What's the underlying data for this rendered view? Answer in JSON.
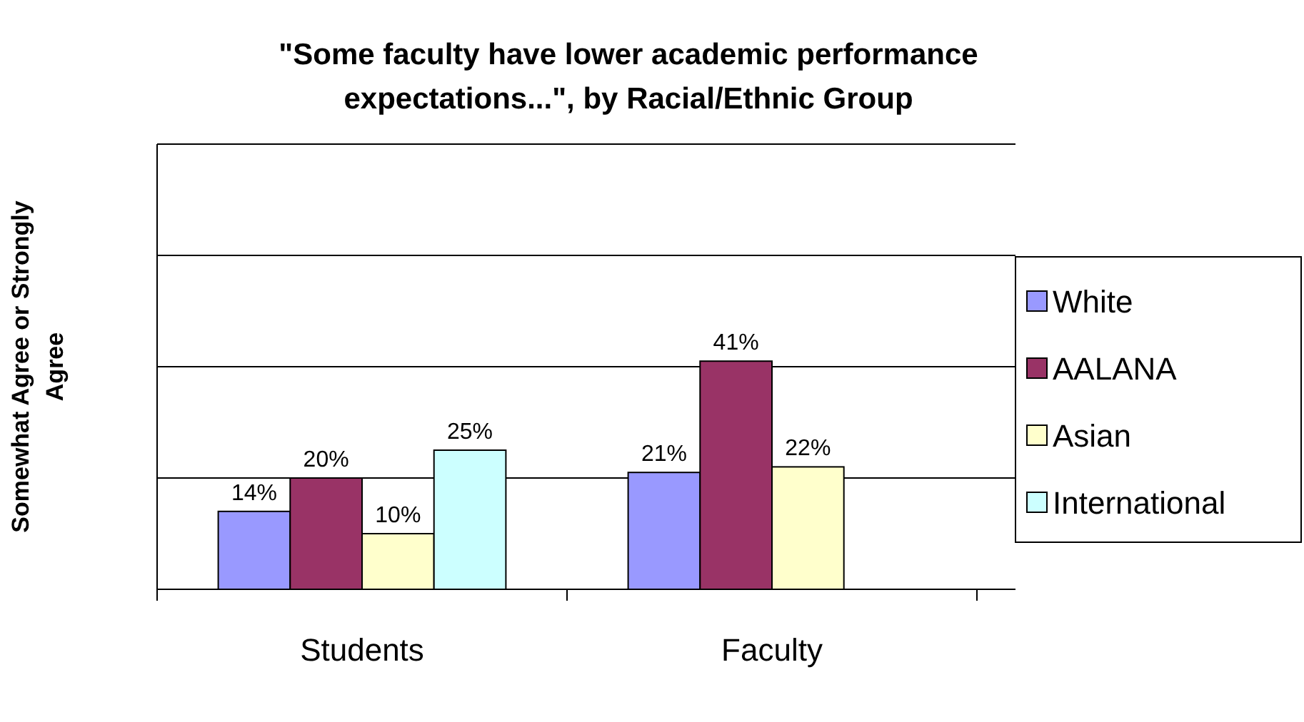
{
  "chart_data": {
    "type": "bar",
    "title": "\"Some faculty have lower academic performance expectations...\", by Racial/Ethnic Group",
    "ylabel": "Somewhat Agree or Strongly Agree",
    "categories": [
      "Students",
      "Faculty"
    ],
    "series": [
      {
        "name": "White",
        "color": "#9999ff",
        "values": [
          14,
          21
        ],
        "value_labels": [
          "14%",
          "21%"
        ]
      },
      {
        "name": "AALANA",
        "color": "#993366",
        "values": [
          20,
          41
        ],
        "value_labels": [
          "20%",
          "41%"
        ]
      },
      {
        "name": "Asian",
        "color": "#ffffcc",
        "values": [
          10,
          22
        ],
        "value_labels": [
          "10%",
          "22%"
        ]
      },
      {
        "name": "International",
        "color": "#ccffff",
        "values": [
          25,
          null
        ],
        "value_labels": [
          "25%",
          null
        ]
      }
    ],
    "ylim": [
      0,
      80
    ],
    "yticks": [
      {
        "value": 0,
        "label": null
      },
      {
        "value": 20,
        "label": null
      },
      {
        "value": 40,
        "label": null
      },
      {
        "value": 60,
        "label": null
      },
      {
        "value": 80,
        "label": null
      }
    ],
    "tick_labels": "x",
    "grid": "y",
    "legend": "right"
  }
}
